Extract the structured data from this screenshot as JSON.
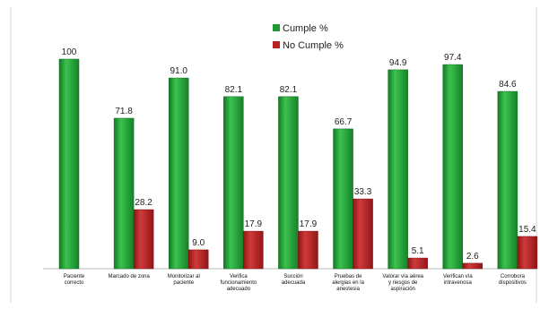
{
  "chart_data": {
    "type": "bar",
    "title": "",
    "xlabel": "",
    "ylabel": "",
    "ylim": [
      0,
      100
    ],
    "grid": false,
    "legend_position": "top-center",
    "categories": [
      [
        "Paciente",
        "correcto"
      ],
      [
        "Marcado de zona"
      ],
      [
        "Monitorizar al",
        "paciente"
      ],
      [
        "Verifica",
        "funcionamiento",
        "adecuado"
      ],
      [
        "Succión",
        "adecuada"
      ],
      [
        "Pruebas de",
        "alergias en la",
        "anestesia"
      ],
      [
        "Valorar vía aérea",
        "y riesgos de",
        "aspiración"
      ],
      [
        "Verifican vía",
        "intravenosa"
      ],
      [
        "Corrobora",
        "dispositivos"
      ]
    ],
    "series": [
      {
        "name": "Cumple %",
        "color": "#1e9a35",
        "values": [
          100,
          71.8,
          91.0,
          82.1,
          82.1,
          66.7,
          94.9,
          97.4,
          84.6
        ],
        "labels": [
          "100",
          "71.8",
          "91.0",
          "82.1",
          "82.1",
          "66.7",
          "94.9",
          "97.4",
          "84.6"
        ]
      },
      {
        "name": "No Cumple %",
        "color": "#b52022",
        "values": [
          0,
          28.2,
          9.0,
          17.9,
          17.9,
          33.3,
          5.1,
          2.6,
          15.4
        ],
        "labels": [
          "",
          "28.2",
          "9.0",
          "17.9",
          "17.9",
          "33.3",
          "5.1",
          "2.6",
          "15.4"
        ]
      }
    ]
  }
}
